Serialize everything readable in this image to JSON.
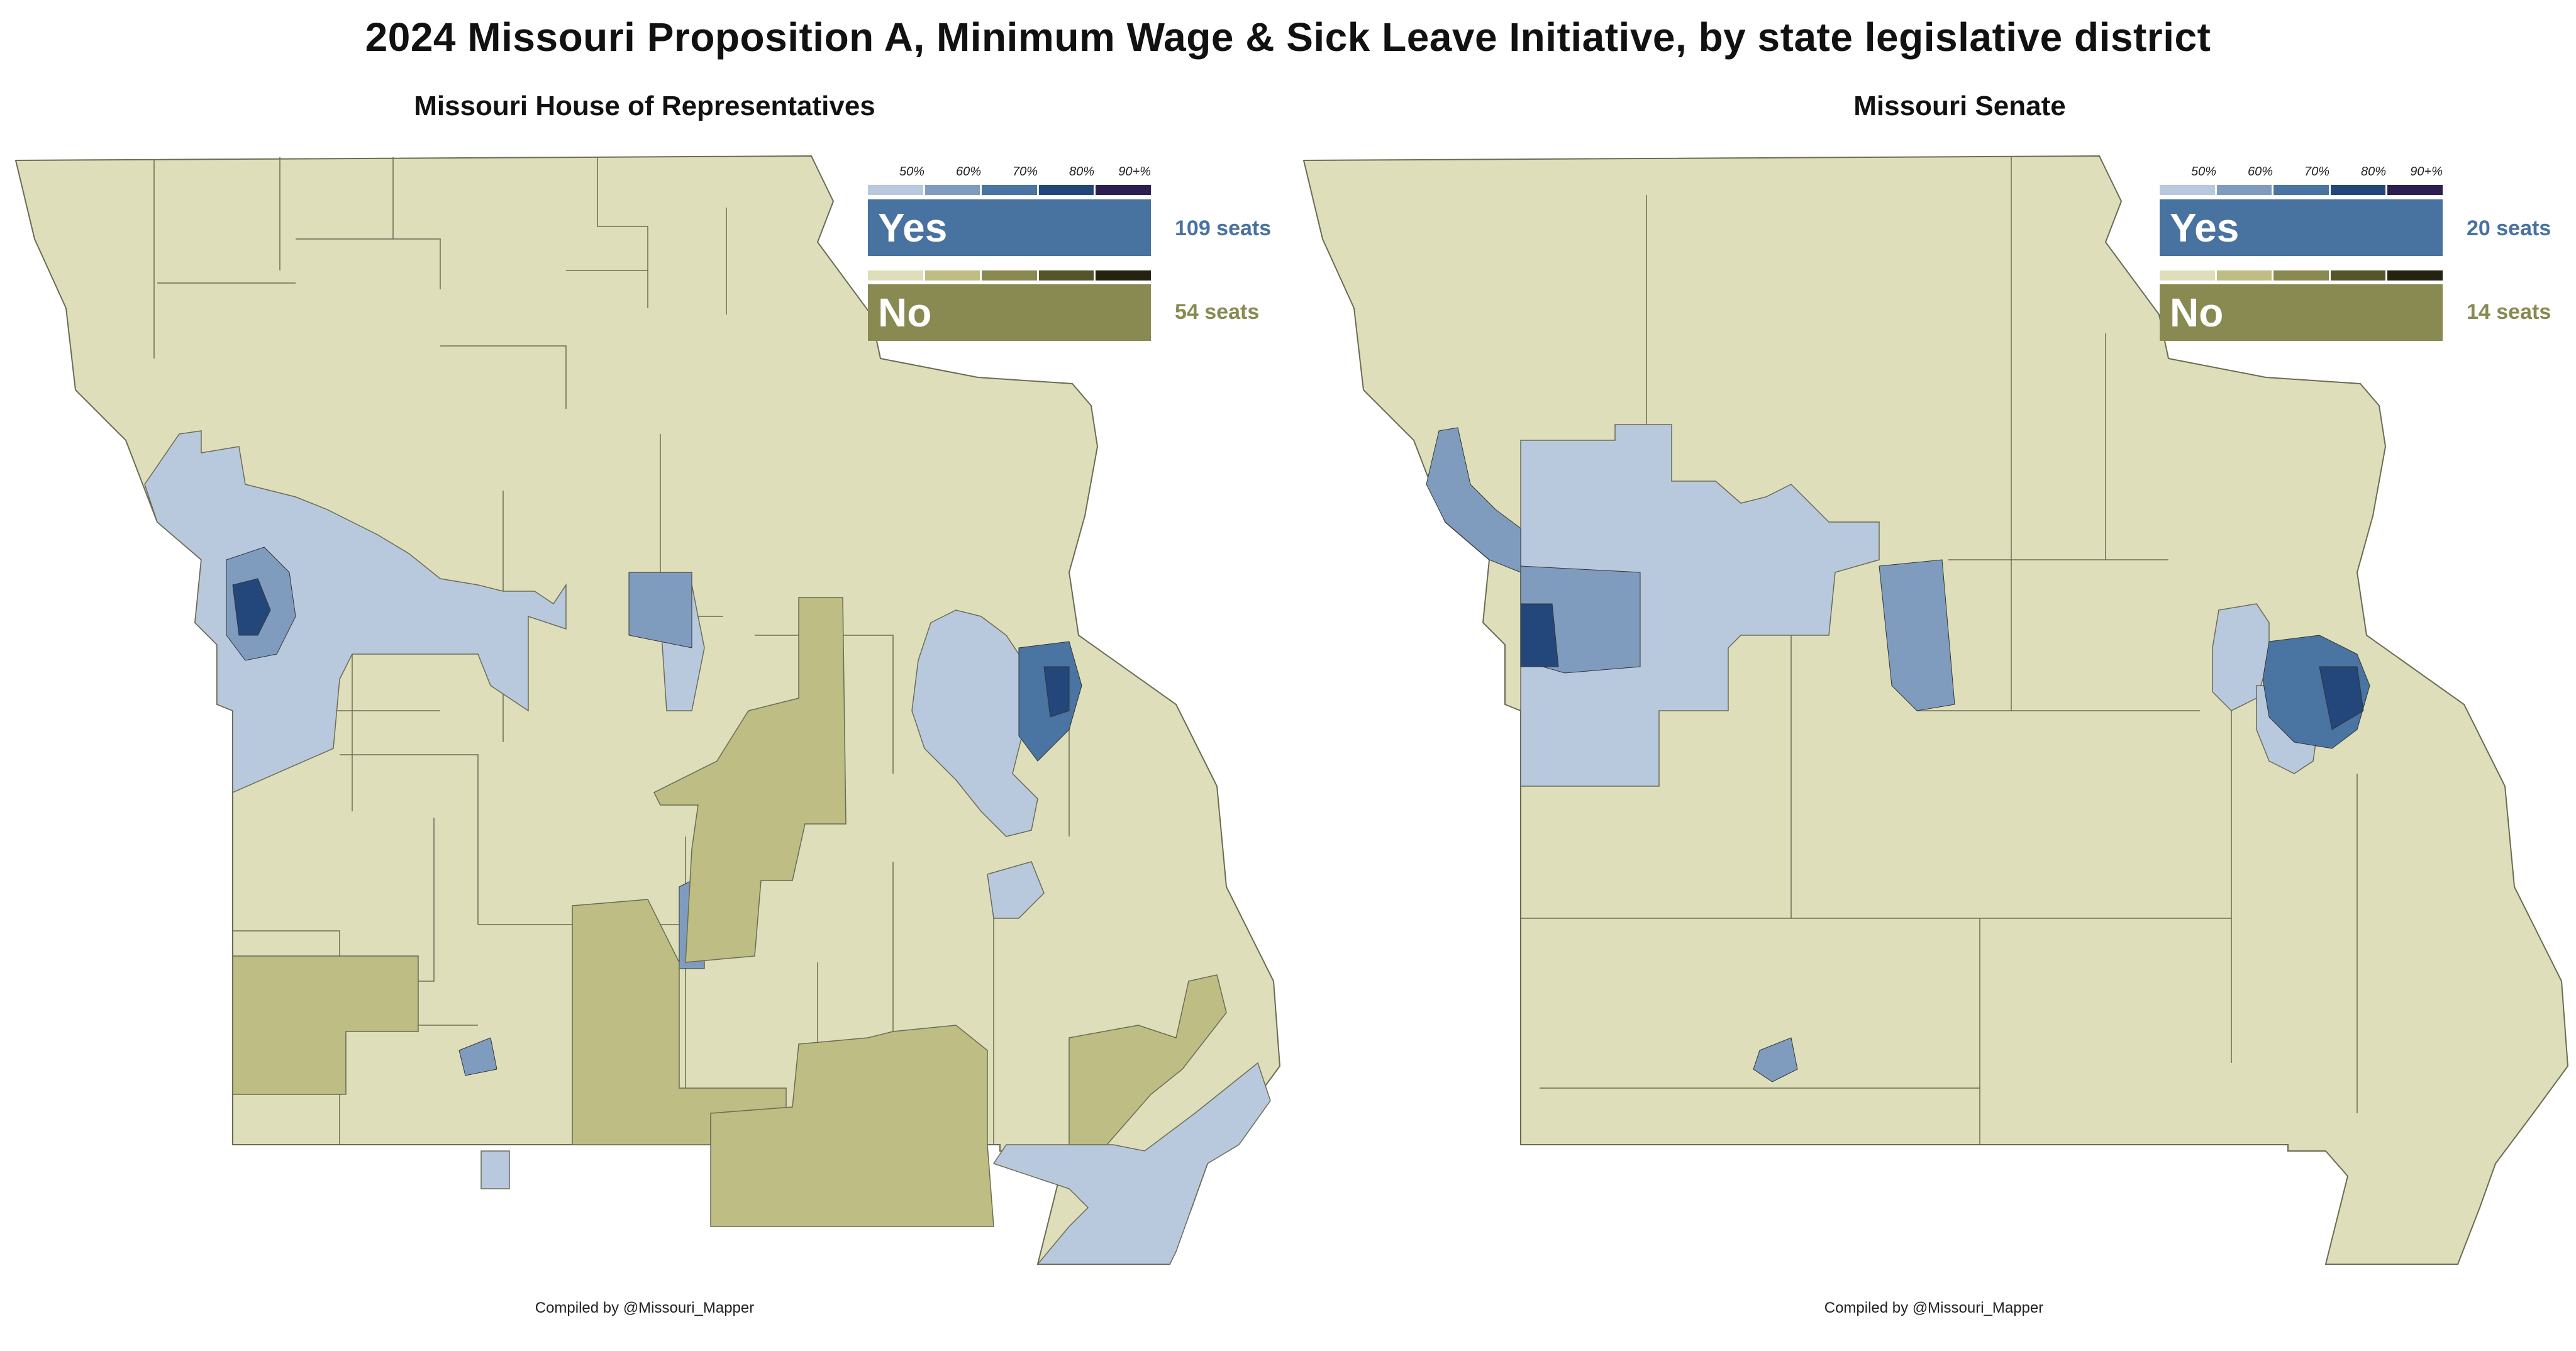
{
  "title": "2024 Missouri Proposition A, Minimum Wage & Sick Leave Initiative, by state legislative district",
  "credit": "Compiled by @Missouri_Mapper",
  "legend": {
    "ticks": [
      "50%",
      "60%",
      "70%",
      "80%",
      "90+%"
    ],
    "yes_label": "Yes",
    "no_label": "No",
    "yes_colors": [
      "#b8c9de",
      "#7f9cbf",
      "#4a74a1",
      "#23477a",
      "#2d2050"
    ],
    "no_colors": [
      "#dedfba",
      "#bdbd84",
      "#8a8a50",
      "#55552b",
      "#232310"
    ],
    "yes_box_color": "#4872a0",
    "no_box_color": "#898a51"
  },
  "maps": [
    {
      "subtitle": "Missouri House of Representatives",
      "yes_seats": "109 seats",
      "no_seats": "54 seats"
    },
    {
      "subtitle": "Missouri Senate",
      "yes_seats": "20 seats",
      "no_seats": "14 seats"
    }
  ]
}
